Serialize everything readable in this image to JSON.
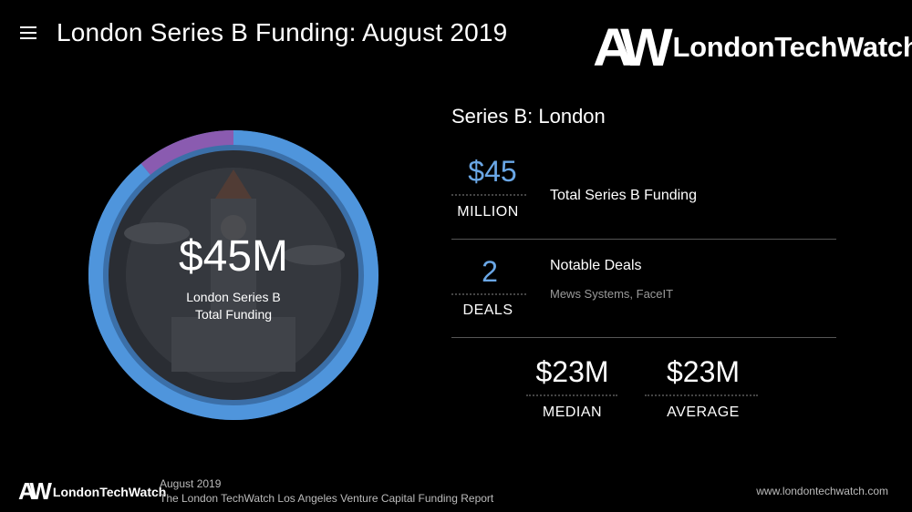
{
  "header": {
    "title": "London Series B Funding: August 2019",
    "logo_mark": "AW",
    "logo_word": "LondonTechWatch"
  },
  "donut": {
    "value": "$45M",
    "label_line1": "London Series B",
    "label_line2": "Total Funding",
    "segments": [
      {
        "fraction": 0.89,
        "color": "#4f95dc"
      },
      {
        "fraction": 0.11,
        "color": "#8a5bb0"
      }
    ]
  },
  "summary": {
    "section_title": "Series B: London",
    "total": {
      "value": "$45",
      "unit": "MILLION",
      "description": "Total Series B Funding"
    },
    "deals": {
      "value": "2",
      "unit": "DEALS",
      "description": "Notable Deals",
      "companies": "Mews Systems, FaceIT"
    },
    "median": {
      "value": "$23M",
      "unit": "MEDIAN"
    },
    "average": {
      "value": "$23M",
      "unit": "AVERAGE"
    }
  },
  "footer": {
    "logo_mark": "AW",
    "logo_word": "LondonTechWatch",
    "date": "August 2019",
    "report": "The London TechWatch Los Angeles Venture Capital Funding Report",
    "url": "www.londontechwatch.com"
  }
}
